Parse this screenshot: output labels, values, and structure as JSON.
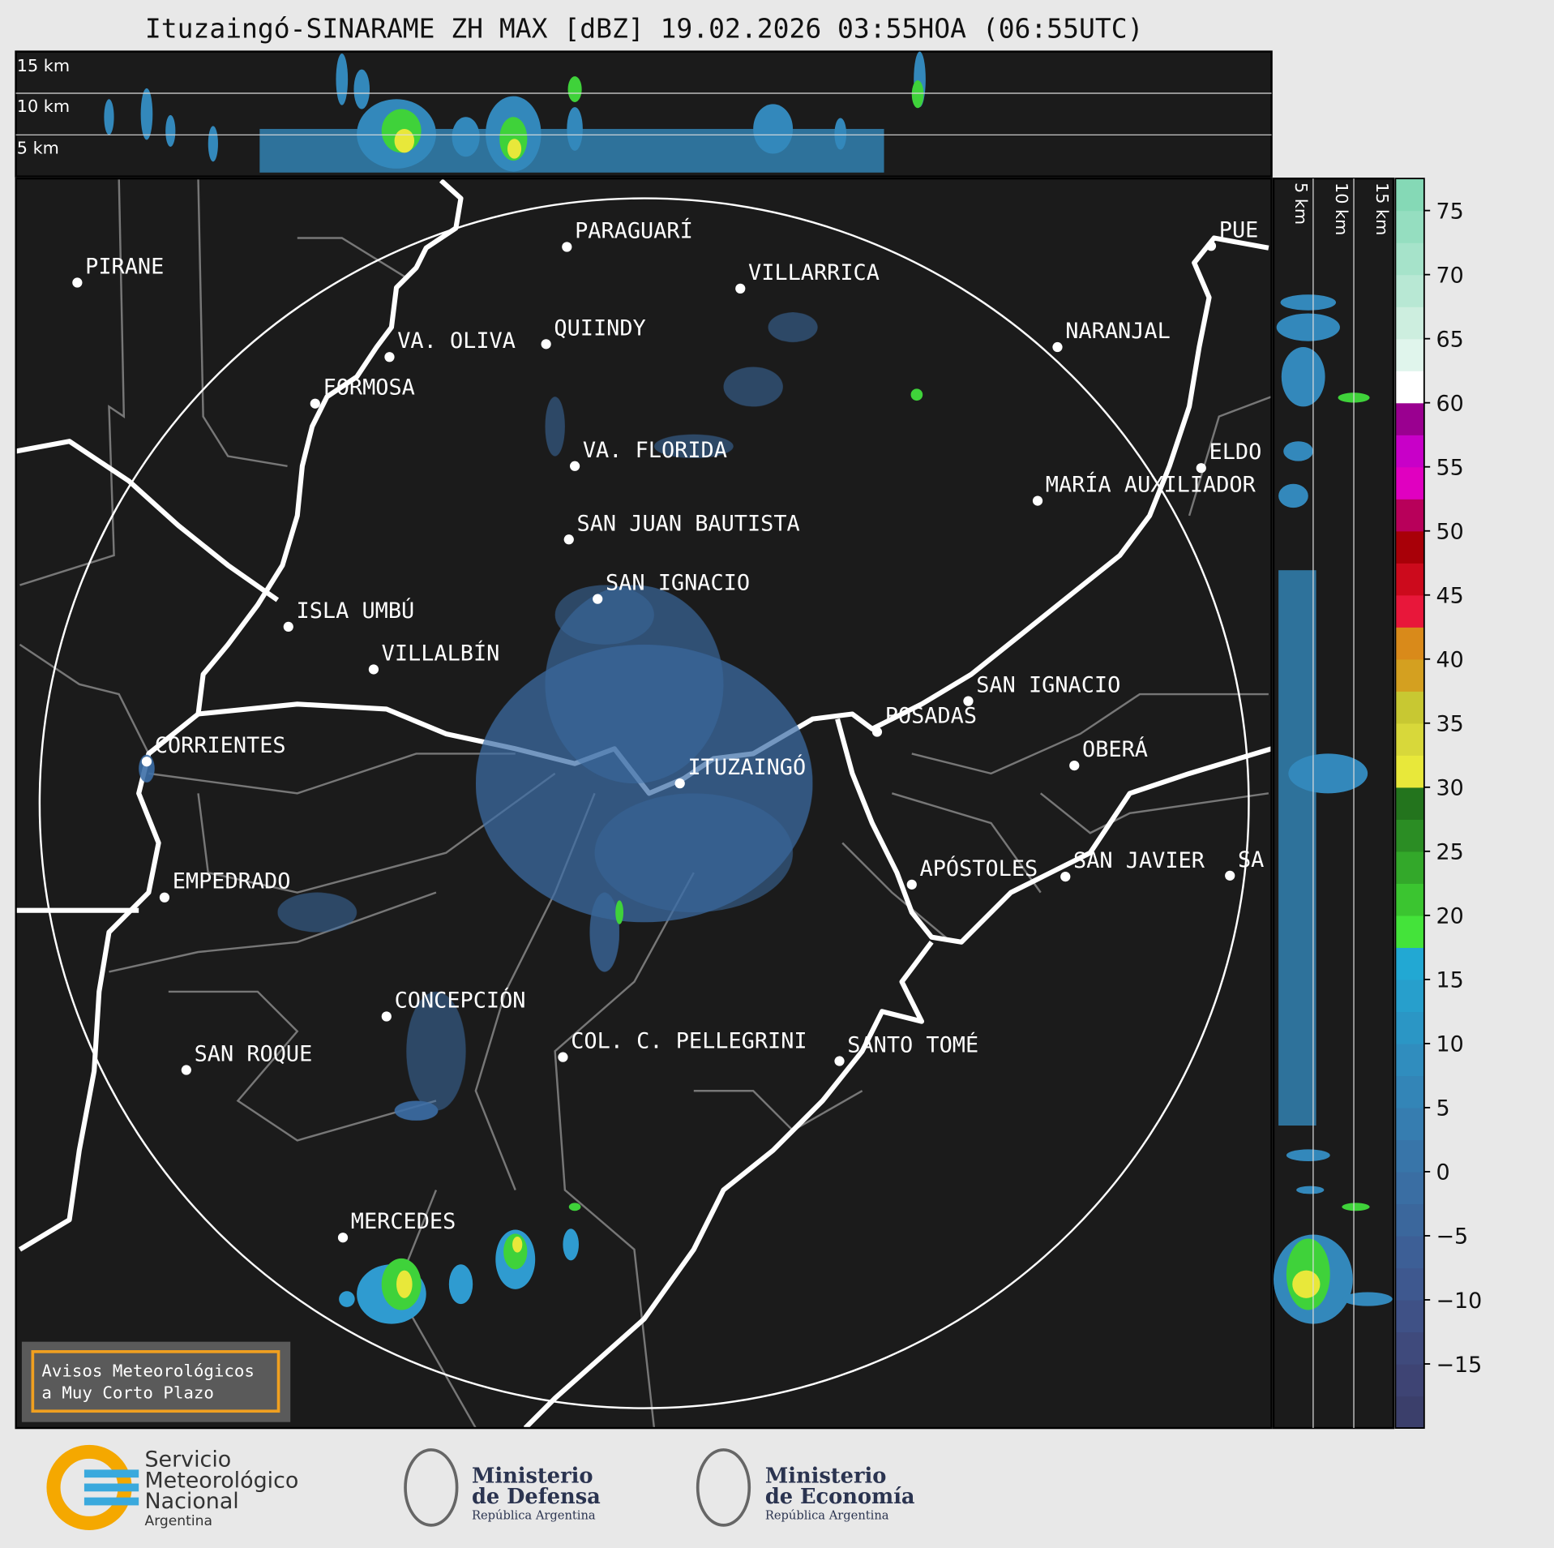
{
  "title": "Ituzaingó-SINARAME ZH MAX [dBZ] 19.02.2026 03:55HOA (06:55UTC)",
  "top_panel": {
    "levels": [
      "15 km",
      "10 km",
      "5 km"
    ]
  },
  "side_panel": {
    "levels": [
      "5 km",
      "10 km",
      "15 km"
    ]
  },
  "map": {
    "cities": [
      "PIRANE",
      "PARAGUARÍ",
      "VILLARRICA",
      "QUIINDY",
      "VA. OLIVA",
      "FORMOSA",
      "NARANJAL",
      "VA. FLORIDA",
      "ELDO",
      "MARÍA AUXILIADOR",
      "SAN JUAN BAUTISTA",
      "SAN IGNACIO",
      "ISLA UMBÚ",
      "VILLALBÍN",
      "SAN IGNACIO",
      "POSADAS",
      "CORRIENTES",
      "ITUZAINGÓ",
      "OBERÁ",
      "APÓSTOLES",
      "SAN JAVIER",
      "SA",
      "EMPEDRADO",
      "CONCEPCIÓN",
      "SAN ROQUE",
      "COL. C. PELLEGRINI",
      "SANTO TOMÉ",
      "MERCEDES",
      "PUE"
    ]
  },
  "notice": [
    "Avisos Meteorológicos",
    "a Muy Corto Plazo"
  ],
  "colorbar": {
    "lim": [
      -20,
      77.5
    ],
    "ticks": [
      75,
      70,
      65,
      60,
      55,
      50,
      45,
      40,
      35,
      30,
      25,
      20,
      15,
      10,
      5,
      0,
      {
        "value": -5,
        "label": "−5"
      },
      {
        "value": -10,
        "label": "−10"
      },
      {
        "value": -15,
        "label": "−15"
      }
    ],
    "colors": [
      "#3b3f6b",
      "#3e4474",
      "#3f4a7c",
      "#3f5186",
      "#3e588f",
      "#3d5f96",
      "#3b679c",
      "#3a6ea3",
      "#3875a9",
      "#367db0",
      "#3385b7",
      "#308dbe",
      "#2b96c5",
      "#279fcc",
      "#22a8d3",
      "#44e33a",
      "#3bc530",
      "#33a82a",
      "#2b8d24",
      "#23741d",
      "#e8e83a",
      "#d8d83a",
      "#c8c832",
      "#d4a020",
      "#d98a1a",
      "#e8173a",
      "#cc0a1c",
      "#a80008",
      "#b8005a",
      "#e000c0",
      "#c800c8",
      "#9a0090",
      "#ffffff",
      "#e0f5ec",
      "#cdeedf",
      "#b8e8d4",
      "#a6e3ca",
      "#95dec0",
      "#85d9b6"
    ]
  },
  "logos": {
    "smn": [
      "Servicio",
      "Meteorológico",
      "Nacional",
      "Argentina"
    ],
    "defensa": [
      "Ministerio",
      "de Defensa",
      "República Argentina"
    ],
    "economia": [
      "Ministerio",
      "de Economía",
      "República Argentina"
    ]
  }
}
